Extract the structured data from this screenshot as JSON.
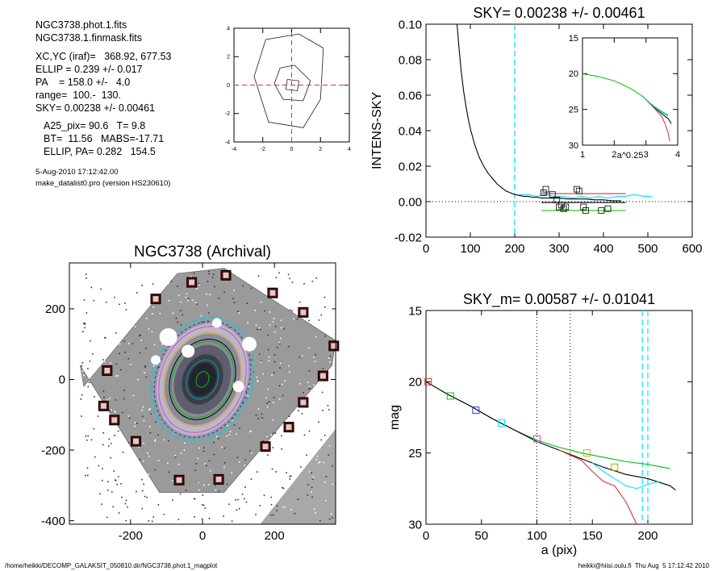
{
  "info": {
    "lines": [
      "NGC3738.phot.1.fits",
      "NGC3738.1.finmask.fits",
      "XC,YC (iraf)=   368.92, 677.53",
      "ELLIP = 0.239 +/- 0.017",
      "PA    = 158.0 +/-   4.0",
      "range=  100.-  130.",
      "SKY= 0.00238 +/- 0.00461",
      "A25_pix= 90.6   T= 9.8",
      "BT=  11.56   MABS=-17.71",
      "ELLIP, PA= 0.282   154.5"
    ],
    "date": "5-Aug-2010 17:12:42.00",
    "program": "make_datalist0.pro (version HS230610)"
  },
  "footer": {
    "left": "/home/heikki/DECOMP_GALAKSIT_050810.dir/NGC3738.phot.1_magplot",
    "right": "heikki@hiisi.oulu.fi  Thu Aug  5 17:12:42 2010"
  },
  "chart_data": [
    {
      "id": "centroid_contour",
      "type": "contour",
      "title": "",
      "xlim": [
        -4,
        4
      ],
      "ylim": [
        -4,
        4
      ],
      "xticks": [
        "-4",
        "-2",
        "0",
        "2",
        "4"
      ],
      "yticks": [
        "-4",
        "-2",
        "0",
        "2",
        "4"
      ],
      "crosshair": {
        "x": 0,
        "y": 0,
        "color": "#e03030"
      }
    },
    {
      "id": "sky_profile",
      "type": "line",
      "title": "SKY= 0.00238 +/- 0.00461",
      "xlabel": "",
      "ylabel": "INTENS-SKY",
      "xlim": [
        0,
        600
      ],
      "ylim": [
        -0.02,
        0.1
      ],
      "xticks": [
        "0",
        "100",
        "200",
        "300",
        "400",
        "500",
        "600"
      ],
      "yticks": [
        "-0.02",
        "0.00",
        "0.02",
        "0.04",
        "0.06",
        "0.08",
        "0.10"
      ],
      "vline_x": 200,
      "vline_color": "#00e5ff",
      "zero_line": true,
      "series": [
        {
          "color": "#000000",
          "x": [
            70,
            75,
            80,
            85,
            90,
            95,
            100,
            110,
            120,
            130,
            140,
            150,
            160,
            170,
            180,
            190,
            200,
            210,
            220,
            230,
            240,
            250,
            260,
            280,
            300,
            320,
            340,
            360,
            380,
            400,
            420,
            440
          ],
          "y": [
            0.1,
            0.085,
            0.072,
            0.062,
            0.054,
            0.047,
            0.041,
            0.032,
            0.025,
            0.02,
            0.016,
            0.013,
            0.01,
            0.008,
            0.006,
            0.005,
            0.004,
            0.0035,
            0.003,
            0.003,
            0.0025,
            0.0025,
            0.002,
            0.002,
            0.002,
            0.0015,
            0.0015,
            0.0015,
            0.001,
            0.001,
            0.0005,
            0.0005
          ]
        },
        {
          "color": "#00e5ff",
          "x": [
            210,
            230,
            250,
            270,
            290,
            310,
            330,
            350,
            370,
            390,
            410,
            430,
            450,
            470,
            490,
            510
          ],
          "y": [
            0.004,
            0.004,
            0.003,
            0.004,
            0.003,
            0.003,
            0.002,
            0.003,
            0.002,
            0.003,
            0.002,
            0.003,
            0.003,
            0.004,
            0.003,
            0.003
          ]
        },
        {
          "color": "#e03030",
          "x": [
            260,
            450
          ],
          "y": [
            0.0045,
            0.0045
          ]
        },
        {
          "color": "#00c000",
          "x": [
            260,
            450
          ],
          "y": [
            -0.005,
            -0.005
          ]
        },
        {
          "color": "#000000",
          "x": [
            260,
            450
          ],
          "y": [
            -0.0005,
            -0.0005
          ]
        }
      ],
      "markers": [
        {
          "x": 265,
          "y": 0.005
        },
        {
          "x": 270,
          "y": 0.007
        },
        {
          "x": 285,
          "y": 0.004
        },
        {
          "x": 295,
          "y": 0.001
        },
        {
          "x": 300,
          "y": -0.003
        },
        {
          "x": 305,
          "y": -0.002
        },
        {
          "x": 310,
          "y": -0.004
        },
        {
          "x": 315,
          "y": -0.003
        },
        {
          "x": 340,
          "y": 0.007
        },
        {
          "x": 345,
          "y": 0.006
        },
        {
          "x": 355,
          "y": -0.003
        },
        {
          "x": 360,
          "y": -0.005
        },
        {
          "x": 395,
          "y": -0.005
        },
        {
          "x": 410,
          "y": -0.004
        }
      ]
    },
    {
      "id": "inset_profile",
      "type": "line",
      "title": "",
      "xlabel": "a^0.25",
      "ylabel": "",
      "xlim": [
        1,
        4
      ],
      "ylim": [
        30,
        15
      ],
      "xticks": [
        "1",
        "2",
        "3",
        "4"
      ],
      "yticks": [
        "15",
        "20",
        "25",
        "30"
      ],
      "series": [
        {
          "color": "#00c000",
          "x": [
            1,
            1.5,
            2,
            2.3,
            2.6,
            2.9,
            3.1,
            3.3,
            3.5,
            3.7
          ],
          "y": [
            20,
            20.4,
            21,
            21.6,
            22.3,
            23.2,
            24.0,
            24.7,
            25.3,
            25.8
          ]
        },
        {
          "color": "#e03030",
          "x": [
            2.9,
            3.1,
            3.3,
            3.5,
            3.6,
            3.7,
            3.75
          ],
          "y": [
            23.2,
            24.1,
            25.0,
            26.0,
            27.0,
            28.3,
            29.5
          ]
        },
        {
          "color": "#000000",
          "x": [
            2.9,
            3.1,
            3.3,
            3.5,
            3.7,
            3.8
          ],
          "y": [
            23.2,
            24.0,
            24.9,
            25.6,
            26.3,
            27.0
          ]
        },
        {
          "color": "#00e5ff",
          "x": [
            2.9,
            3.1,
            3.3,
            3.5,
            3.7
          ],
          "y": [
            23.2,
            24.0,
            24.8,
            25.4,
            26.0
          ]
        }
      ]
    },
    {
      "id": "galaxy_image",
      "type": "image",
      "title": "NGC3738 (Archival)",
      "xlim": [
        -370,
        370
      ],
      "ylim": [
        -410,
        330
      ],
      "xticks": [
        "-200",
        "0",
        "200"
      ],
      "yticks": [
        "-400",
        "-200",
        "0",
        "200"
      ],
      "ellipse": {
        "a": 160,
        "b": 122,
        "pa_deg": 158
      },
      "box_markers": [
        {
          "x": -130,
          "y": 228
        },
        {
          "x": -30,
          "y": 275
        },
        {
          "x": 65,
          "y": 295
        },
        {
          "x": 195,
          "y": 245
        },
        {
          "x": 280,
          "y": 190
        },
        {
          "x": 365,
          "y": 95
        },
        {
          "x": 335,
          "y": 10
        },
        {
          "x": 280,
          "y": -65
        },
        {
          "x": 240,
          "y": -135
        },
        {
          "x": 175,
          "y": -190
        },
        {
          "x": 45,
          "y": -283
        },
        {
          "x": -65,
          "y": -285
        },
        {
          "x": -185,
          "y": -175
        },
        {
          "x": -245,
          "y": -115
        },
        {
          "x": -275,
          "y": -75
        },
        {
          "x": -265,
          "y": 25
        }
      ]
    },
    {
      "id": "surface_brightness",
      "type": "line",
      "title": "SKY_m=  0.00587 +/- 0.01041",
      "xlabel": "a (pix)",
      "ylabel": "mag",
      "xlim": [
        0,
        240
      ],
      "ylim": [
        30,
        15
      ],
      "xticks": [
        "0",
        "50",
        "100",
        "150",
        "200"
      ],
      "yticks": [
        "15",
        "20",
        "25",
        "30"
      ],
      "vlines": [
        {
          "x": 100,
          "style": "dotted"
        },
        {
          "x": 130,
          "style": "dotted"
        },
        {
          "x": 195,
          "style": "cyan"
        },
        {
          "x": 200,
          "style": "cyan"
        }
      ],
      "series": [
        {
          "color": "#00c000",
          "x": [
            0,
            20,
            40,
            60,
            80,
            100,
            120,
            140,
            160,
            180,
            200,
            220
          ],
          "y": [
            20,
            20.9,
            21.7,
            22.6,
            23.4,
            24.1,
            24.6,
            25.0,
            25.3,
            25.6,
            25.8,
            26.1
          ]
        },
        {
          "color": "#000000",
          "x": [
            0,
            20,
            40,
            60,
            80,
            100,
            120,
            140,
            160,
            180,
            200,
            220,
            225
          ],
          "y": [
            20,
            20.9,
            21.7,
            22.6,
            23.4,
            24.2,
            24.8,
            25.4,
            26.0,
            26.5,
            26.8,
            27.3,
            27.6
          ]
        },
        {
          "color": "#e03030",
          "x": [
            120,
            140,
            150,
            160,
            170,
            180,
            185,
            190
          ],
          "y": [
            24.8,
            25.5,
            26.3,
            27.0,
            27.3,
            28.4,
            29.2,
            30
          ]
        },
        {
          "color": "#00e5ff",
          "x": [
            150,
            160,
            170,
            180,
            190,
            200,
            210
          ],
          "y": [
            25.7,
            26.3,
            26.8,
            27.3,
            27.5,
            27.2,
            27.0
          ]
        }
      ],
      "markers": [
        {
          "x": 2,
          "y": 20,
          "color": "#e03030"
        },
        {
          "x": 22,
          "y": 21.0,
          "color": "#00c000"
        },
        {
          "x": 45,
          "y": 22.0,
          "color": "#3030e0"
        },
        {
          "x": 68,
          "y": 22.9,
          "color": "#00e5ff"
        },
        {
          "x": 100,
          "y": 24.0,
          "color": "#e040e0"
        },
        {
          "x": 145,
          "y": 25.0,
          "color": "#e0a020"
        },
        {
          "x": 170,
          "y": 26.0,
          "color": "#b0a000"
        }
      ]
    }
  ]
}
